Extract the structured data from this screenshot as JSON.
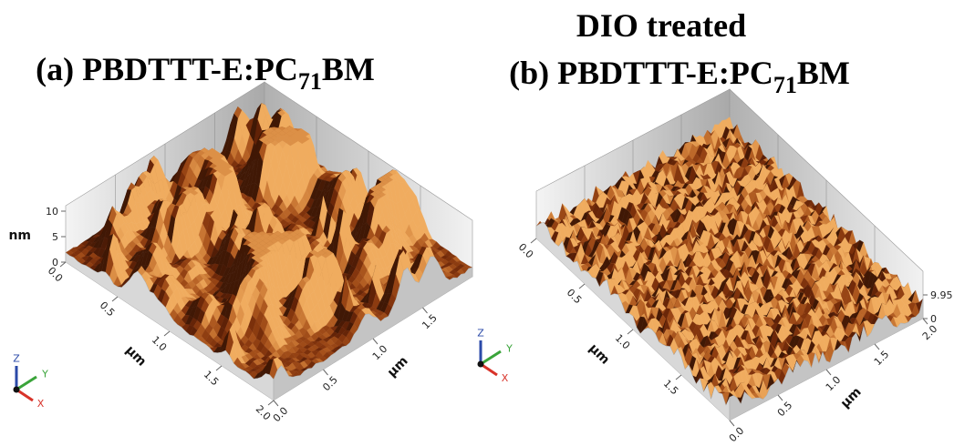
{
  "heading": "DIO treated",
  "panels": [
    {
      "title": {
        "prefix": "(a) PBDTTT-E:PC",
        "subscript": "71",
        "suffix": "BM"
      },
      "z_label": "nm",
      "z_ticks": [
        "0",
        "5",
        "10"
      ],
      "left_axis_label": "μm",
      "left_ticks": [
        "0.0",
        "0.5",
        "1.0",
        "1.5",
        "2.0"
      ],
      "right_axis_label": "μm",
      "right_ticks": [
        "0.0",
        "0.5",
        "1.0",
        "1.5"
      ],
      "axes": [
        "Z",
        "Y",
        "X"
      ]
    },
    {
      "title": {
        "prefix": "(b) PBDTTT-E:PC",
        "subscript": "71",
        "suffix": "BM"
      },
      "z_ticks": [
        "0",
        "9.95"
      ],
      "left_axis_label": "μm",
      "left_ticks": [
        "0.0",
        "0.5",
        "1.0",
        "1.5"
      ],
      "right_axis_label": "μm",
      "right_ticks": [
        "0.0",
        "0.5",
        "1.0",
        "1.5",
        "2.0"
      ],
      "axes": [
        "Z",
        "Y",
        "X"
      ]
    }
  ]
}
